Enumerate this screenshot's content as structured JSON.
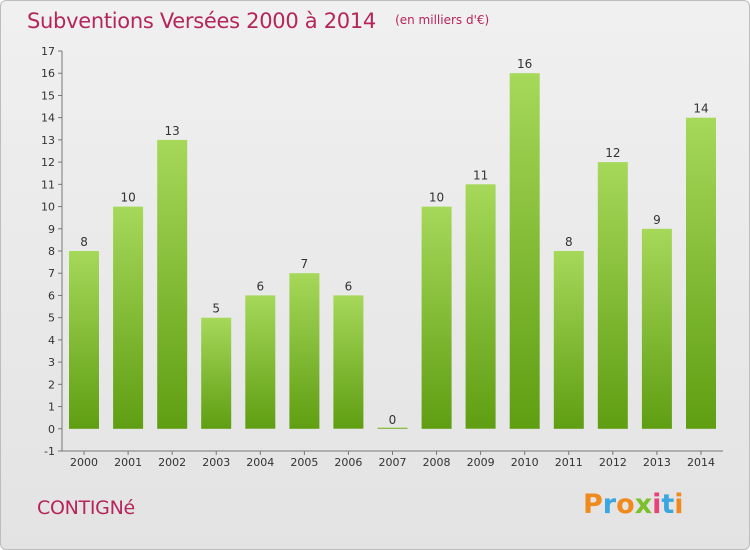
{
  "header": {
    "title": "Subventions Versées 2000 à 2014",
    "subtitle": "(en milliers d'€)"
  },
  "footer": {
    "commune": "CONTIGNé",
    "logo_text": "Proxiti"
  },
  "colors": {
    "accent": "#b5255b",
    "bar_top": "#a6d85a",
    "bar_bottom": "#5f9e12",
    "logo_letters": [
      "#f08a1c",
      "#3aa6e0",
      "#f08a1c",
      "#7bbf2a",
      "#e8427a",
      "#3aa6e0",
      "#f08a1c"
    ]
  },
  "chart_data": {
    "type": "bar",
    "categories": [
      "2000",
      "2001",
      "2002",
      "2003",
      "2004",
      "2005",
      "2006",
      "2007",
      "2008",
      "2009",
      "2010",
      "2011",
      "2012",
      "2013",
      "2014"
    ],
    "values": [
      8,
      10,
      13,
      5,
      6,
      7,
      6,
      0,
      10,
      11,
      16,
      8,
      12,
      9,
      14
    ],
    "title": "Subventions Versées 2000 à 2014",
    "xlabel": "",
    "ylabel": "",
    "ylim": [
      -1,
      17
    ],
    "yticks": [
      -1,
      0,
      1,
      2,
      3,
      4,
      5,
      6,
      7,
      8,
      9,
      10,
      11,
      12,
      13,
      14,
      15,
      16,
      17
    ],
    "grid": false,
    "legend": "none"
  }
}
